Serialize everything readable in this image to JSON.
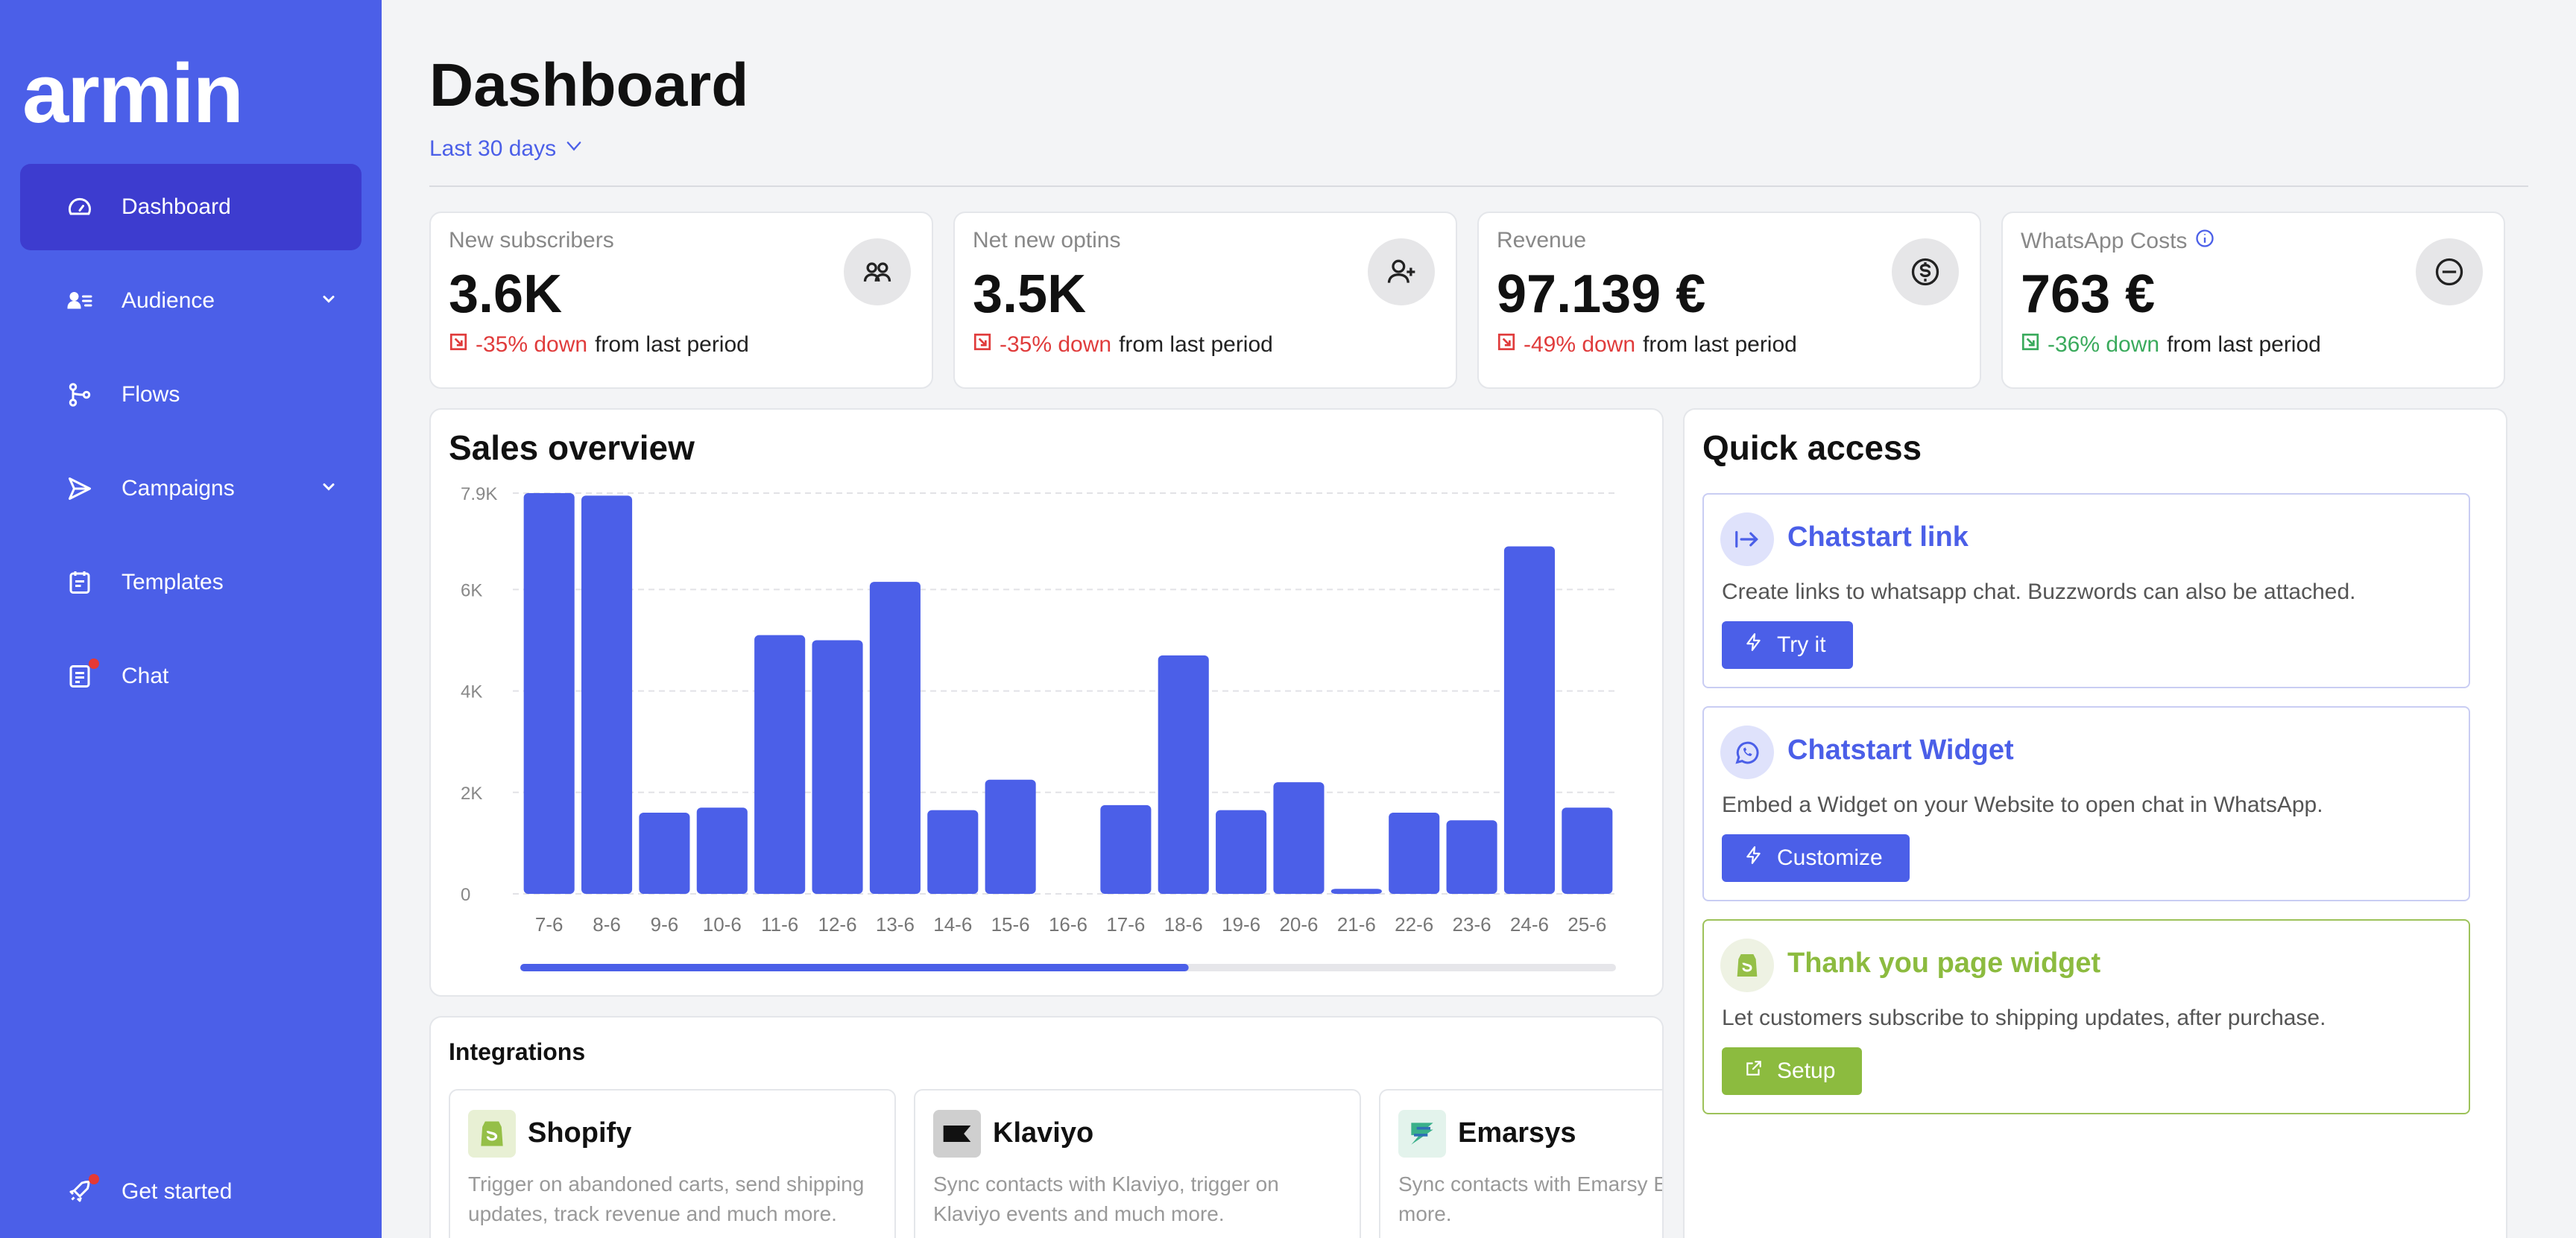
{
  "brand": {
    "logo_text": "armin",
    "accent": "#4b5fe8"
  },
  "sidebar": {
    "items": [
      {
        "label": "Dashboard",
        "icon": "gauge-icon",
        "active": true
      },
      {
        "label": "Audience",
        "icon": "users-list-icon",
        "has_chevron": true
      },
      {
        "label": "Flows",
        "icon": "flow-branch-icon"
      },
      {
        "label": "Campaigns",
        "icon": "send-icon",
        "has_chevron": true
      },
      {
        "label": "Templates",
        "icon": "clipboard-icon"
      },
      {
        "label": "Chat",
        "icon": "chat-doc-icon",
        "badge": true
      }
    ],
    "get_started": {
      "label": "Get started",
      "icon": "rocket-icon",
      "badge": true
    }
  },
  "header": {
    "title": "Dashboard",
    "period": "Last 30 days"
  },
  "stats": [
    {
      "label": "New subscribers",
      "value": "3.6K",
      "change": "-35% down",
      "suffix": "from last period",
      "trend": "down-bad",
      "icon": "group-icon"
    },
    {
      "label": "Net new optins",
      "value": "3.5K",
      "change": "-35% down",
      "suffix": "from last period",
      "trend": "down-bad",
      "icon": "user-add-icon"
    },
    {
      "label": "Revenue",
      "value": "97.139 €",
      "change": "-49% down",
      "suffix": "from last period",
      "trend": "down-bad",
      "icon": "dollar-coin-icon"
    },
    {
      "label": "WhatsApp Costs",
      "value": "763 €",
      "change": "-36% down",
      "suffix": "from last period",
      "trend": "down-good",
      "icon": "minus-circle-icon",
      "info": true
    }
  ],
  "sales": {
    "title": "Sales overview",
    "scroll_progress": 0.61
  },
  "chart_data": {
    "type": "bar",
    "title": "Sales overview",
    "categories": [
      "7-6",
      "8-6",
      "9-6",
      "10-6",
      "11-6",
      "12-6",
      "13-6",
      "14-6",
      "15-6",
      "16-6",
      "17-6",
      "18-6",
      "19-6",
      "20-6",
      "21-6",
      "22-6",
      "23-6",
      "24-6",
      "25-6"
    ],
    "values": [
      7900,
      7850,
      1600,
      1700,
      5100,
      5000,
      6150,
      1650,
      2250,
      0,
      1750,
      4700,
      1650,
      2200,
      100,
      1600,
      1450,
      6850,
      1700
    ],
    "ylim": [
      0,
      7900
    ],
    "yticks": [
      0,
      2000,
      4000,
      6000,
      7900
    ],
    "ytick_labels": [
      "0",
      "2K",
      "4K",
      "6K",
      "7.9K"
    ],
    "grid": true,
    "color": "#4b5fe8"
  },
  "quick_access": {
    "title": "Quick access",
    "items": [
      {
        "title": "Chatstart link",
        "desc": "Create links to whatsapp chat. Buzzwords can also be attached.",
        "button": "Try it",
        "icon": "arrow-right-bar-icon",
        "button_icon": "bolt-icon",
        "variant": "blue"
      },
      {
        "title": "Chatstart Widget",
        "desc": "Embed a Widget on your Website to open chat in WhatsApp.",
        "button": "Customize",
        "icon": "whatsapp-icon",
        "button_icon": "bolt-icon",
        "variant": "blue"
      },
      {
        "title": "Thank you page widget",
        "desc": "Let customers subscribe to shipping updates, after purchase.",
        "button": "Setup",
        "icon": "shopify-bag-icon",
        "button_icon": "external-link-icon",
        "variant": "green"
      }
    ]
  },
  "integrations": {
    "title": "Integrations",
    "items": [
      {
        "name": "Shopify",
        "desc": "Trigger on abandoned carts, send shipping updates, track revenue and much more.",
        "icon": "shopify-logo-icon"
      },
      {
        "name": "Klaviyo",
        "desc": "Sync contacts with Klaviyo, trigger on Klaviyo events and much more.",
        "icon": "klaviyo-logo-icon"
      },
      {
        "name": "Emarsys",
        "desc": "Sync contacts with Emarsy Events and much more.",
        "icon": "emarsys-logo-icon"
      }
    ]
  }
}
